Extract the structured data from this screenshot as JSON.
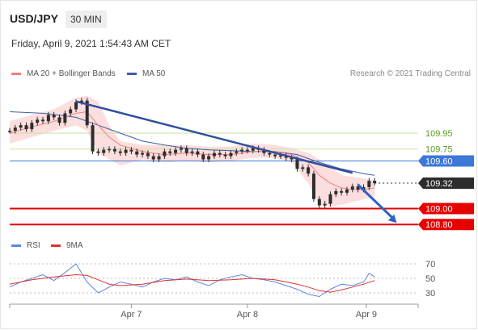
{
  "header": {
    "symbol": "USD/JPY",
    "timeframe": "30 MIN",
    "datetime": "Friday, April 9, 2021 1:54:43 AM CET"
  },
  "legend": {
    "ma20_label": "MA 20 + Bollinger Bands",
    "ma50_label": "MA 50",
    "credit": "Research © 2021 Trading Central",
    "rsi_label": "RSI",
    "ma9_label": "9MA"
  },
  "colors": {
    "candle": "#2d2d2d",
    "ma20": "#f08080",
    "bollinger_fill": "#fbd0d0",
    "ma50": "#3a5ea8",
    "trendline": "#2f4f9e",
    "level_green": "#c6e3a4",
    "level_green_text": "#5a9a22",
    "level_blue": "#3c78d8",
    "level_red": "#e60000",
    "current": "#2d2d2d",
    "arrow": "#2b63c0",
    "rsi": "#5b86e5",
    "ma9": "#e03030"
  },
  "chart_data": {
    "type": "line",
    "title": "USD/JPY",
    "x_ticks": [
      "Apr 7",
      "Apr 8",
      "Apr 9"
    ],
    "ylim": [
      108.68,
      110.55
    ],
    "levels": [
      {
        "value": 109.95,
        "label": "109.95",
        "kind": "resistance-minor",
        "style": "green"
      },
      {
        "value": 109.75,
        "label": "109.75",
        "kind": "resistance-minor",
        "style": "green"
      },
      {
        "value": 109.6,
        "label": "109.60",
        "kind": "pivot",
        "style": "blue-tag"
      },
      {
        "value": 109.0,
        "label": "109.00",
        "kind": "support",
        "style": "red-tag"
      },
      {
        "value": 108.8,
        "label": "108.80",
        "kind": "support",
        "style": "red-tag"
      }
    ],
    "current_price": {
      "value": 109.32,
      "label": "109.32"
    },
    "trendline": {
      "from": {
        "x": 12,
        "y": 110.35
      },
      "to": {
        "x": 62,
        "y": 109.45
      }
    },
    "arrow": {
      "from": {
        "x": 63,
        "y": 109.3
      },
      "to": {
        "x": 70,
        "y": 108.82
      }
    },
    "x_domain": [
      0,
      74
    ],
    "x_tick_positions": [
      22,
      43,
      64.5
    ],
    "price_series": [
      [
        0,
        109.98
      ],
      [
        1,
        110.02
      ],
      [
        2,
        110.05
      ],
      [
        3,
        110.0
      ],
      [
        4,
        110.08
      ],
      [
        5,
        110.12
      ],
      [
        6,
        110.1
      ],
      [
        7,
        110.18
      ],
      [
        8,
        110.15
      ],
      [
        9,
        110.08
      ],
      [
        10,
        110.2
      ],
      [
        11,
        110.25
      ],
      [
        12,
        110.34
      ],
      [
        13,
        110.36
      ],
      [
        14,
        110.05
      ],
      [
        15,
        109.72
      ],
      [
        16,
        109.7
      ],
      [
        17,
        109.74
      ],
      [
        18,
        109.75
      ],
      [
        19,
        109.72
      ],
      [
        20,
        109.7
      ],
      [
        21,
        109.74
      ],
      [
        22,
        109.72
      ],
      [
        23,
        109.68
      ],
      [
        24,
        109.7
      ],
      [
        25,
        109.66
      ],
      [
        26,
        109.62
      ],
      [
        27,
        109.66
      ],
      [
        28,
        109.72
      ],
      [
        29,
        109.7
      ],
      [
        30,
        109.74
      ],
      [
        31,
        109.76
      ],
      [
        32,
        109.7
      ],
      [
        33,
        109.72
      ],
      [
        34,
        109.68
      ],
      [
        35,
        109.62
      ],
      [
        36,
        109.66
      ],
      [
        37,
        109.7
      ],
      [
        38,
        109.68
      ],
      [
        39,
        109.66
      ],
      [
        40,
        109.7
      ],
      [
        41,
        109.72
      ],
      [
        42,
        109.74
      ],
      [
        43,
        109.73
      ],
      [
        44,
        109.76
      ],
      [
        45,
        109.74
      ],
      [
        46,
        109.7
      ],
      [
        47,
        109.68
      ],
      [
        48,
        109.66
      ],
      [
        49,
        109.67
      ],
      [
        50,
        109.64
      ],
      [
        51,
        109.62
      ],
      [
        52,
        109.5
      ],
      [
        53,
        109.52
      ],
      [
        54,
        109.44
      ],
      [
        55,
        109.12
      ],
      [
        56,
        109.04
      ],
      [
        57,
        109.06
      ],
      [
        58,
        109.18
      ],
      [
        59,
        109.22
      ],
      [
        60,
        109.2
      ],
      [
        61,
        109.24
      ],
      [
        62,
        109.28
      ],
      [
        63,
        109.24
      ],
      [
        64,
        109.27
      ],
      [
        65,
        109.35
      ],
      [
        66,
        109.32
      ]
    ],
    "ma20_series": [
      [
        0,
        109.95
      ],
      [
        4,
        110.03
      ],
      [
        8,
        110.1
      ],
      [
        12,
        110.2
      ],
      [
        14,
        110.22
      ],
      [
        16,
        110.05
      ],
      [
        18,
        109.9
      ],
      [
        20,
        109.8
      ],
      [
        24,
        109.72
      ],
      [
        28,
        109.68
      ],
      [
        32,
        109.7
      ],
      [
        36,
        109.68
      ],
      [
        40,
        109.68
      ],
      [
        44,
        109.72
      ],
      [
        48,
        109.72
      ],
      [
        51,
        109.68
      ],
      [
        54,
        109.58
      ],
      [
        56,
        109.42
      ],
      [
        58,
        109.32
      ],
      [
        60,
        109.26
      ],
      [
        62,
        109.24
      ],
      [
        64,
        109.24
      ],
      [
        66,
        109.26
      ]
    ],
    "bb_upper": [
      [
        0,
        110.1
      ],
      [
        4,
        110.18
      ],
      [
        8,
        110.25
      ],
      [
        12,
        110.4
      ],
      [
        14,
        110.42
      ],
      [
        16,
        110.35
      ],
      [
        18,
        110.05
      ],
      [
        20,
        109.85
      ],
      [
        24,
        109.8
      ],
      [
        28,
        109.8
      ],
      [
        32,
        109.8
      ],
      [
        36,
        109.78
      ],
      [
        40,
        109.78
      ],
      [
        44,
        109.82
      ],
      [
        48,
        109.8
      ],
      [
        51,
        109.76
      ],
      [
        54,
        109.7
      ],
      [
        56,
        109.62
      ],
      [
        58,
        109.52
      ],
      [
        60,
        109.42
      ],
      [
        62,
        109.4
      ],
      [
        64,
        109.38
      ],
      [
        66,
        109.36
      ]
    ],
    "bb_lower": [
      [
        0,
        109.82
      ],
      [
        4,
        109.9
      ],
      [
        8,
        109.98
      ],
      [
        12,
        110.05
      ],
      [
        14,
        109.98
      ],
      [
        16,
        109.7
      ],
      [
        18,
        109.62
      ],
      [
        20,
        109.54
      ],
      [
        24,
        109.62
      ],
      [
        28,
        109.58
      ],
      [
        32,
        109.6
      ],
      [
        36,
        109.58
      ],
      [
        40,
        109.6
      ],
      [
        44,
        109.64
      ],
      [
        48,
        109.64
      ],
      [
        51,
        109.58
      ],
      [
        54,
        109.32
      ],
      [
        56,
        109.05
      ],
      [
        58,
        109.02
      ],
      [
        60,
        109.05
      ],
      [
        62,
        109.08
      ],
      [
        64,
        109.12
      ],
      [
        66,
        109.14
      ]
    ],
    "ma50_series": [
      [
        0,
        110.22
      ],
      [
        6,
        110.2
      ],
      [
        12,
        110.15
      ],
      [
        16,
        110.05
      ],
      [
        20,
        109.95
      ],
      [
        24,
        109.85
      ],
      [
        28,
        109.8
      ],
      [
        32,
        109.76
      ],
      [
        36,
        109.74
      ],
      [
        40,
        109.73
      ],
      [
        44,
        109.72
      ],
      [
        48,
        109.72
      ],
      [
        52,
        109.68
      ],
      [
        56,
        109.58
      ],
      [
        60,
        109.5
      ],
      [
        64,
        109.44
      ],
      [
        66,
        109.42
      ]
    ],
    "rsi": {
      "ylim": [
        20,
        80
      ],
      "y_ticks": [
        70,
        50,
        30
      ],
      "series": [
        [
          0,
          38
        ],
        [
          2,
          45
        ],
        [
          4,
          50
        ],
        [
          6,
          55
        ],
        [
          8,
          47
        ],
        [
          10,
          58
        ],
        [
          12,
          70
        ],
        [
          14,
          45
        ],
        [
          16,
          30
        ],
        [
          18,
          38
        ],
        [
          20,
          45
        ],
        [
          22,
          42
        ],
        [
          24,
          38
        ],
        [
          26,
          45
        ],
        [
          28,
          50
        ],
        [
          30,
          48
        ],
        [
          32,
          52
        ],
        [
          34,
          45
        ],
        [
          36,
          40
        ],
        [
          38,
          48
        ],
        [
          40,
          52
        ],
        [
          42,
          55
        ],
        [
          44,
          50
        ],
        [
          46,
          48
        ],
        [
          48,
          45
        ],
        [
          50,
          40
        ],
        [
          52,
          35
        ],
        [
          54,
          28
        ],
        [
          56,
          25
        ],
        [
          58,
          35
        ],
        [
          60,
          42
        ],
        [
          62,
          40
        ],
        [
          64,
          45
        ],
        [
          65,
          57
        ],
        [
          66,
          52
        ]
      ],
      "ma9": [
        [
          0,
          42
        ],
        [
          4,
          48
        ],
        [
          8,
          52
        ],
        [
          12,
          55
        ],
        [
          14,
          54
        ],
        [
          16,
          48
        ],
        [
          18,
          42
        ],
        [
          20,
          40
        ],
        [
          24,
          42
        ],
        [
          28,
          47
        ],
        [
          32,
          49
        ],
        [
          36,
          47
        ],
        [
          40,
          48
        ],
        [
          44,
          50
        ],
        [
          48,
          48
        ],
        [
          52,
          42
        ],
        [
          54,
          38
        ],
        [
          56,
          33
        ],
        [
          58,
          31
        ],
        [
          60,
          34
        ],
        [
          62,
          38
        ],
        [
          64,
          42
        ],
        [
          66,
          47
        ]
      ]
    }
  }
}
